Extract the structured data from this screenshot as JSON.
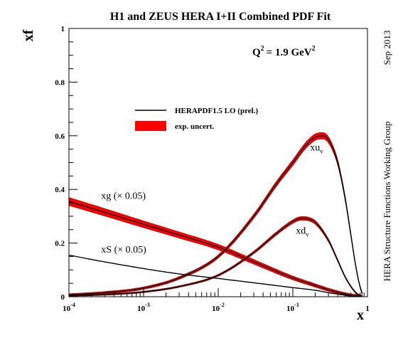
{
  "chart_data": {
    "type": "line",
    "title": "H1 and ZEUS HERA I+II Combined PDF Fit",
    "scale_label": "Q",
    "scale_exp": "2",
    "scale_value": "= 1.9 GeV",
    "scale_unit_exp": "2",
    "ylabel": "xf",
    "xlabel": "x",
    "xscale": "log",
    "xlim": [
      0.0001,
      1
    ],
    "ylim": [
      0,
      1
    ],
    "x_ticks": [
      {
        "base": "10",
        "exp": "-4",
        "value": 0.0001
      },
      {
        "base": "10",
        "exp": "-3",
        "value": 0.001
      },
      {
        "base": "10",
        "exp": "-2",
        "value": 0.01
      },
      {
        "base": "10",
        "exp": "-1",
        "value": 0.1
      },
      {
        "base": "1",
        "exp": "",
        "value": 1
      }
    ],
    "y_ticks": [
      "0",
      "0.2",
      "0.4",
      "0.6",
      "0.8",
      "1"
    ],
    "y_tick_values": [
      0,
      0.2,
      0.4,
      0.6,
      0.8,
      1
    ],
    "legend": {
      "position": "upper-center",
      "line_label": "HERAPDF1.5 LO (prel.)",
      "band_label": "exp. uncert."
    },
    "side_texts": {
      "date": "Sep 2013",
      "group": "HERA Structure Functions Working Group"
    },
    "colors": {
      "line": "#000000",
      "band": "#ff0000",
      "band_edge": "#8b0000"
    },
    "series": [
      {
        "name": "xu",
        "sub": "v",
        "label_x": 0.17,
        "label_y": 0.545,
        "x": [
          0.0001,
          0.0003,
          0.001,
          0.003,
          0.01,
          0.03,
          0.06,
          0.1,
          0.15,
          0.2,
          0.25,
          0.3,
          0.4,
          0.5,
          0.6,
          0.7,
          0.8,
          0.85
        ],
        "y": [
          0.007,
          0.015,
          0.032,
          0.07,
          0.15,
          0.3,
          0.42,
          0.5,
          0.565,
          0.595,
          0.6,
          0.585,
          0.5,
          0.37,
          0.23,
          0.11,
          0.035,
          0.012
        ],
        "band": 0.012
      },
      {
        "name": "xd",
        "sub": "v",
        "label_x": 0.11,
        "label_y": 0.235,
        "x": [
          0.0001,
          0.0003,
          0.001,
          0.003,
          0.01,
          0.03,
          0.06,
          0.1,
          0.13,
          0.16,
          0.2,
          0.3,
          0.4,
          0.5,
          0.6,
          0.7,
          0.8,
          0.85
        ],
        "y": [
          0.004,
          0.008,
          0.018,
          0.038,
          0.08,
          0.165,
          0.235,
          0.28,
          0.292,
          0.29,
          0.277,
          0.21,
          0.135,
          0.075,
          0.038,
          0.015,
          0.004,
          0.001
        ],
        "band": 0.007
      },
      {
        "name": "xg (× 0.05)",
        "sub": "",
        "label_x": 0.00027,
        "label_y": 0.365,
        "x": [
          0.0001,
          0.0003,
          0.001,
          0.003,
          0.01,
          0.03,
          0.1,
          0.2,
          0.3,
          0.5,
          0.7,
          0.85
        ],
        "y": [
          0.355,
          0.315,
          0.27,
          0.23,
          0.185,
          0.13,
          0.07,
          0.042,
          0.026,
          0.01,
          0.003,
          0.001
        ],
        "band": 0.015
      },
      {
        "name": "xS (× 0.05)",
        "sub": "",
        "label_x": 0.00027,
        "label_y": 0.165,
        "x": [
          0.0001,
          0.0003,
          0.001,
          0.003,
          0.01,
          0.03,
          0.1,
          0.2,
          0.3,
          0.5,
          0.7,
          0.85
        ],
        "y": [
          0.155,
          0.13,
          0.105,
          0.085,
          0.068,
          0.052,
          0.034,
          0.024,
          0.015,
          0.006,
          0.002,
          0.0005
        ],
        "band": 0.001
      }
    ]
  }
}
